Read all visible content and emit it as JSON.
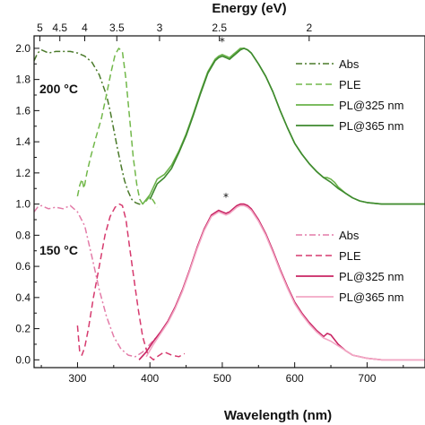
{
  "chart_data": {
    "type": "line",
    "xlabel": "Wavelength (nm)",
    "top_xlabel": "Energy (eV)",
    "ylabel": "",
    "xlim": [
      240,
      780
    ],
    "ylim": [
      -0.05,
      2.08
    ],
    "x_ticks": [
      300,
      400,
      500,
      600,
      700
    ],
    "y_ticks": [
      0.0,
      0.2,
      0.4,
      0.6,
      0.8,
      1.0,
      1.2,
      1.4,
      1.6,
      1.8,
      2.0
    ],
    "y_tick_labels": [
      "0.0",
      "0.2",
      "0.4",
      "0.6",
      "0.8",
      "1.0",
      "1.2",
      "1.4",
      "1.6",
      "1.8",
      "2.0"
    ],
    "top_ticks": [
      {
        "label": "5",
        "wavelength": 248
      },
      {
        "label": "4.5",
        "wavelength": 275.6
      },
      {
        "label": "4",
        "wavelength": 310
      },
      {
        "label": "3.5",
        "wavelength": 354.3
      },
      {
        "label": "3",
        "wavelength": 413.3
      },
      {
        "label": "2.5",
        "wavelength": 496
      },
      {
        "label": "2",
        "wavelength": 620
      }
    ],
    "panels": [
      {
        "label": "200 °C",
        "star": "*",
        "star_x": 500,
        "star_y": 2.02,
        "legend": [
          "Abs",
          "PLE",
          "PL@325 nm",
          "PL@365 nm"
        ],
        "series": [
          {
            "name": "Abs",
            "color": "#4a7a2a",
            "style": "dashdot",
            "x": [
              240,
              245,
              250,
              260,
              270,
              280,
              290,
              300,
              310,
              320,
              330,
              340,
              345,
              350,
              355,
              360,
              365,
              370,
              375,
              380,
              385,
              390
            ],
            "y": [
              1.92,
              1.97,
              1.99,
              1.97,
              1.98,
              1.98,
              1.98,
              1.97,
              1.95,
              1.91,
              1.83,
              1.7,
              1.6,
              1.48,
              1.36,
              1.25,
              1.15,
              1.08,
              1.03,
              1.01,
              1.0,
              1.0
            ]
          },
          {
            "name": "PLE",
            "color": "#72b84a",
            "style": "dashed",
            "x": [
              300,
              303,
              306,
              309,
              313,
              318,
              325,
              333,
              340,
              346,
              352,
              357,
              362,
              367,
              372,
              377,
              382,
              386,
              390,
              395,
              400,
              405,
              410
            ],
            "y": [
              1.05,
              1.12,
              1.16,
              1.1,
              1.2,
              1.3,
              1.42,
              1.55,
              1.7,
              1.84,
              1.96,
              2.0,
              1.98,
              1.8,
              1.55,
              1.3,
              1.12,
              1.03,
              1.0,
              1.02,
              1.05,
              1.02,
              0.98
            ]
          },
          {
            "name": "PL@325 nm",
            "color": "#6ab24a",
            "style": "solid",
            "x": [
              390,
              400,
              410,
              420,
              430,
              440,
              450,
              460,
              470,
              480,
              490,
              495,
              500,
              505,
              510,
              515,
              520,
              525,
              530,
              535,
              540,
              550,
              560,
              570,
              580,
              590,
              600,
              610,
              620,
              630,
              640,
              645,
              650,
              655,
              660,
              670,
              680,
              690,
              700,
              720,
              740,
              760,
              780
            ],
            "y": [
              1.0,
              1.06,
              1.16,
              1.19,
              1.25,
              1.34,
              1.45,
              1.58,
              1.72,
              1.85,
              1.93,
              1.95,
              1.96,
              1.95,
              1.94,
              1.96,
              1.98,
              2.0,
              2.0,
              1.99,
              1.97,
              1.9,
              1.82,
              1.72,
              1.6,
              1.49,
              1.39,
              1.32,
              1.26,
              1.21,
              1.17,
              1.17,
              1.16,
              1.14,
              1.11,
              1.07,
              1.04,
              1.02,
              1.01,
              1.0,
              1.0,
              1.0,
              1.0
            ]
          },
          {
            "name": "PL@365 nm",
            "color": "#3e8a2e",
            "style": "solid",
            "x": [
              400,
              410,
              420,
              430,
              440,
              450,
              460,
              470,
              480,
              490,
              495,
              500,
              505,
              510,
              515,
              520,
              525,
              530,
              535,
              540,
              550,
              560,
              570,
              580,
              590,
              600,
              610,
              620,
              630,
              640,
              650,
              660,
              670,
              680,
              690,
              700,
              720,
              740,
              760,
              780
            ],
            "y": [
              1.03,
              1.13,
              1.17,
              1.23,
              1.33,
              1.44,
              1.57,
              1.71,
              1.84,
              1.92,
              1.94,
              1.95,
              1.94,
              1.93,
              1.95,
              1.97,
              1.99,
              2.0,
              1.99,
              1.97,
              1.9,
              1.82,
              1.72,
              1.6,
              1.49,
              1.39,
              1.32,
              1.26,
              1.21,
              1.17,
              1.14,
              1.1,
              1.07,
              1.04,
              1.02,
              1.01,
              1.0,
              1.0,
              1.0,
              1.0
            ]
          }
        ]
      },
      {
        "label": "150 °C",
        "star": "*",
        "star_x": 505,
        "star_y": 1.02,
        "legend": [
          "Abs",
          "PLE",
          "PL@325 nm",
          "PL@365 nm"
        ],
        "series": [
          {
            "name": "Abs",
            "color": "#e37ca8",
            "style": "dashdot",
            "x": [
              240,
              245,
              250,
              260,
              270,
              280,
              290,
              300,
              310,
              320,
              330,
              340,
              350,
              360,
              370,
              380,
              390,
              400,
              410,
              415
            ],
            "y": [
              0.95,
              0.98,
              0.99,
              0.97,
              0.98,
              0.97,
              0.99,
              0.95,
              0.86,
              0.66,
              0.45,
              0.28,
              0.15,
              0.07,
              0.03,
              0.02,
              0.05,
              0.1,
              0.15,
              0.18
            ]
          },
          {
            "name": "PLE",
            "color": "#d63a6e",
            "style": "dashed",
            "x": [
              300,
              303,
              306,
              310,
              315,
              322,
              330,
              338,
              345,
              352,
              358,
              362,
              367,
              372,
              378,
              384,
              390,
              396,
              400,
              405,
              410,
              420,
              430,
              440,
              448
            ],
            "y": [
              0.22,
              0.05,
              0.03,
              0.08,
              0.2,
              0.4,
              0.6,
              0.8,
              0.92,
              0.98,
              1.0,
              0.99,
              0.9,
              0.72,
              0.52,
              0.32,
              0.15,
              0.05,
              0.02,
              0.0,
              0.02,
              0.05,
              0.03,
              0.02,
              0.04
            ]
          },
          {
            "name": "PL@325 nm",
            "color": "#c92463",
            "style": "solid",
            "x": [
              385,
              395,
              405,
              415,
              425,
              435,
              445,
              455,
              465,
              475,
              485,
              495,
              500,
              505,
              510,
              515,
              520,
              525,
              530,
              535,
              540,
              550,
              560,
              570,
              580,
              590,
              600,
              610,
              620,
              630,
              640,
              645,
              650,
              655,
              660,
              670,
              680,
              690,
              700,
              720,
              740,
              760,
              780
            ],
            "y": [
              0.0,
              0.05,
              0.12,
              0.18,
              0.25,
              0.34,
              0.45,
              0.58,
              0.72,
              0.84,
              0.93,
              0.96,
              0.95,
              0.94,
              0.95,
              0.97,
              0.99,
              1.0,
              1.0,
              0.99,
              0.97,
              0.9,
              0.81,
              0.7,
              0.58,
              0.47,
              0.37,
              0.3,
              0.24,
              0.19,
              0.15,
              0.17,
              0.16,
              0.13,
              0.1,
              0.06,
              0.03,
              0.02,
              0.01,
              0.0,
              0.0,
              0.0,
              0.0
            ]
          },
          {
            "name": "PL@365 nm",
            "color": "#f2a7c4",
            "style": "solid",
            "x": [
              395,
              405,
              415,
              425,
              435,
              445,
              455,
              465,
              475,
              485,
              495,
              500,
              505,
              510,
              515,
              520,
              525,
              530,
              535,
              540,
              550,
              560,
              570,
              580,
              590,
              600,
              610,
              620,
              630,
              640,
              650,
              660,
              670,
              680,
              690,
              700,
              720,
              740,
              760,
              780
            ],
            "y": [
              0.02,
              0.1,
              0.17,
              0.24,
              0.33,
              0.44,
              0.57,
              0.71,
              0.83,
              0.92,
              0.95,
              0.94,
              0.93,
              0.94,
              0.96,
              0.98,
              0.99,
              0.99,
              0.98,
              0.96,
              0.89,
              0.8,
              0.69,
              0.57,
              0.46,
              0.36,
              0.29,
              0.23,
              0.18,
              0.14,
              0.12,
              0.09,
              0.06,
              0.03,
              0.02,
              0.01,
              0.0,
              0.0,
              0.0,
              0.0
            ]
          }
        ]
      }
    ]
  }
}
